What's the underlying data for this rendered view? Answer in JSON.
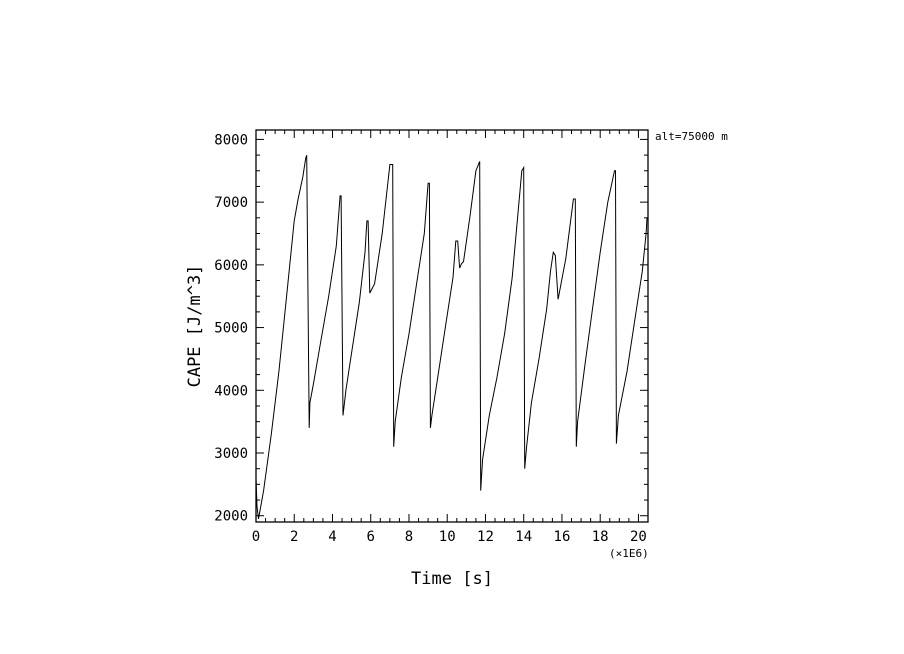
{
  "chart_data": {
    "type": "line",
    "xlabel": "Time [s]",
    "ylabel": "CAPE [J/m^3]",
    "x_multiplier_label": "(×1E6)",
    "annotation": "alt=75000 m",
    "xlim": [
      0,
      20.5
    ],
    "ylim": [
      1900,
      8150
    ],
    "x_ticks": [
      0,
      2,
      4,
      6,
      8,
      10,
      12,
      14,
      16,
      18,
      20
    ],
    "y_ticks": [
      2000,
      3000,
      4000,
      5000,
      6000,
      7000,
      8000
    ],
    "grid": false,
    "series": [
      {
        "x": [
          0.0,
          0.05,
          0.13,
          0.22,
          0.4,
          0.8,
          1.2,
          1.6,
          2.0,
          2.2,
          2.45,
          2.6,
          2.65,
          2.78,
          2.82,
          3.0,
          3.4,
          3.8,
          4.2,
          4.4,
          4.45,
          4.55,
          4.7,
          5.0,
          5.4,
          5.7,
          5.8,
          5.86,
          5.95,
          6.2,
          6.6,
          7.0,
          7.15,
          7.2,
          7.28,
          7.6,
          8.0,
          8.4,
          8.8,
          9.0,
          9.07,
          9.12,
          9.2,
          9.5,
          9.9,
          10.3,
          10.45,
          10.55,
          10.65,
          10.75,
          10.85,
          11.2,
          11.5,
          11.7,
          11.75,
          11.85,
          12.2,
          12.6,
          13.0,
          13.4,
          13.9,
          14.0,
          14.05,
          14.15,
          14.4,
          14.8,
          15.2,
          15.4,
          15.55,
          15.65,
          15.8,
          16.2,
          16.6,
          16.7,
          16.75,
          16.82,
          17.2,
          17.6,
          18.0,
          18.4,
          18.75,
          18.8,
          18.85,
          18.95,
          19.4,
          19.8,
          20.2,
          20.4,
          20.45
        ],
        "y": [
          2600,
          2150,
          1950,
          2100,
          2400,
          3300,
          4300,
          5500,
          6700,
          7050,
          7400,
          7700,
          7750,
          3400,
          3800,
          4100,
          4800,
          5500,
          6300,
          7100,
          7100,
          3600,
          4000,
          4600,
          5400,
          6200,
          6700,
          6700,
          5550,
          5700,
          6500,
          7600,
          7600,
          3100,
          3500,
          4200,
          4900,
          5700,
          6500,
          7300,
          7300,
          3400,
          3600,
          4200,
          5000,
          5800,
          6380,
          6380,
          5950,
          6020,
          6050,
          6800,
          7500,
          7650,
          2400,
          2900,
          3600,
          4200,
          4900,
          5800,
          7500,
          7550,
          2750,
          3100,
          3800,
          4500,
          5300,
          5900,
          6200,
          6150,
          5450,
          6100,
          7050,
          7050,
          3100,
          3500,
          4400,
          5300,
          6200,
          7000,
          7500,
          7500,
          3150,
          3600,
          4300,
          5100,
          5900,
          6500,
          6750
        ]
      }
    ]
  }
}
